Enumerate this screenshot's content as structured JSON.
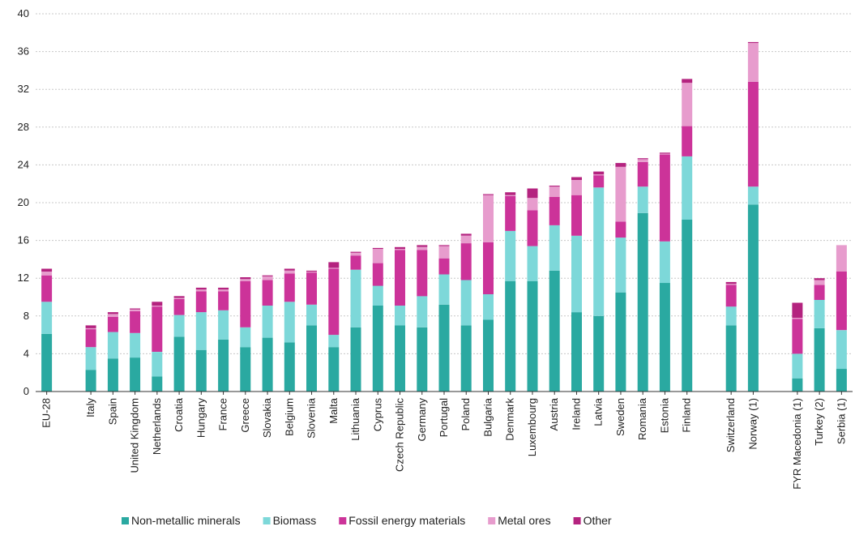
{
  "chart_data": {
    "type": "bar",
    "stacked": true,
    "ylim": [
      0,
      40
    ],
    "yticks": [
      0,
      4,
      8,
      12,
      16,
      20,
      24,
      28,
      32,
      36,
      40
    ],
    "grid": true,
    "legend_position": "bottom",
    "categories": [
      "EU-28",
      "Italy",
      "Spain",
      "United Kingdom",
      "Netherlands",
      "Croatia",
      "Hungary",
      "France",
      "Greece",
      "Slovakia",
      "Belgium",
      "Slovenia",
      "Malta",
      "Lithuania",
      "Cyprus",
      "Czech Republic",
      "Germany",
      "Portugal",
      "Poland",
      "Bulgaria",
      "Denmark",
      "Luxembourg",
      "Austria",
      "Ireland",
      "Latvia",
      "Sweden",
      "Romania",
      "Estonia",
      "Finland",
      "Switzerland",
      "Norway (1)",
      "FYR Macedonia (1)",
      "Turkey (2)",
      "Serbia (1)"
    ],
    "groups": [
      [
        0
      ],
      [
        1,
        28
      ],
      [
        29,
        30
      ],
      [
        31,
        33
      ]
    ],
    "series": [
      {
        "name": "Non-metallic minerals",
        "color": "#2aa9a1",
        "values": [
          6.1,
          2.3,
          3.5,
          3.6,
          1.6,
          5.8,
          4.4,
          5.5,
          4.7,
          5.7,
          5.2,
          7.0,
          4.7,
          6.8,
          9.1,
          7.0,
          6.8,
          9.2,
          7.0,
          7.6,
          11.7,
          11.7,
          12.8,
          8.4,
          8.0,
          10.5,
          18.9,
          11.5,
          18.2,
          7.0,
          19.8,
          1.4,
          6.7,
          2.4
        ]
      },
      {
        "name": "Biomass",
        "color": "#7dd8d9",
        "values": [
          3.4,
          2.4,
          2.8,
          2.6,
          2.6,
          2.3,
          4.0,
          3.1,
          2.1,
          3.4,
          4.3,
          2.2,
          1.3,
          6.1,
          2.1,
          2.1,
          3.3,
          3.2,
          4.8,
          2.7,
          5.3,
          3.7,
          4.8,
          8.1,
          13.6,
          5.8,
          2.8,
          4.4,
          6.7,
          2.0,
          1.9,
          2.6,
          3.0,
          4.1
        ]
      },
      {
        "name": "Fossil energy materials",
        "color": "#cc3399",
        "values": [
          2.8,
          1.9,
          1.6,
          2.3,
          4.8,
          1.7,
          2.2,
          2.0,
          4.9,
          2.7,
          3.0,
          3.4,
          7.0,
          1.5,
          2.4,
          5.9,
          4.9,
          1.7,
          3.9,
          5.5,
          3.7,
          3.8,
          3.0,
          4.3,
          1.3,
          1.7,
          2.6,
          9.2,
          3.2,
          2.3,
          11.1,
          3.7,
          1.6,
          6.2
        ]
      },
      {
        "name": "Metal ores",
        "color": "#e79ccd",
        "values": [
          0.4,
          0.1,
          0.3,
          0.2,
          0.1,
          0.1,
          0.2,
          0.2,
          0.2,
          0.4,
          0.3,
          0.1,
          0.1,
          0.3,
          1.5,
          0.1,
          0.3,
          1.3,
          0.8,
          5.0,
          0.1,
          1.3,
          1.1,
          1.6,
          0.1,
          5.8,
          0.3,
          0.1,
          4.6,
          0.1,
          4.1,
          0.1,
          0.5,
          2.8
        ]
      },
      {
        "name": "Other",
        "color": "#b4237f",
        "values": [
          0.3,
          0.3,
          0.2,
          0.1,
          0.4,
          0.2,
          0.2,
          0.2,
          0.2,
          0.1,
          0.2,
          0.1,
          0.6,
          0.1,
          0.1,
          0.2,
          0.2,
          0.1,
          0.2,
          0.1,
          0.3,
          1.0,
          0.1,
          0.3,
          0.3,
          0.4,
          0.1,
          0.1,
          0.4,
          0.2,
          0.1,
          1.6,
          0.2,
          0.0
        ]
      }
    ]
  }
}
